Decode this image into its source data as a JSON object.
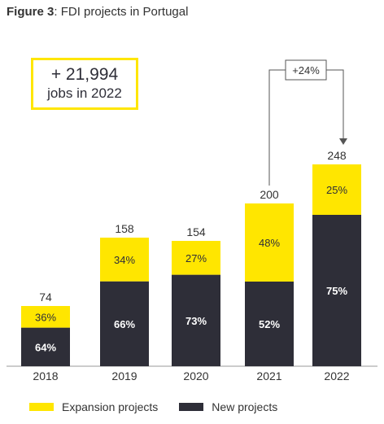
{
  "title_bold": "Figure 3",
  "title_rest": ": FDI projects in Portugal",
  "callout": {
    "value": "+ 21,994",
    "text": "jobs in 2022"
  },
  "growth_label": "+24%",
  "colors": {
    "expansion": "#ffe600",
    "new": "#2e2e38",
    "axis": "#999999"
  },
  "chart_data": {
    "type": "bar",
    "stacked": true,
    "categories": [
      "2018",
      "2019",
      "2020",
      "2021",
      "2022"
    ],
    "totals": [
      74,
      158,
      154,
      200,
      248
    ],
    "series": [
      {
        "name": "New projects",
        "percent_labels": [
          "64%",
          "66%",
          "73%",
          "52%",
          "75%"
        ],
        "values": [
          47.4,
          104.3,
          112.4,
          104,
          186
        ]
      },
      {
        "name": "Expansion projects",
        "percent_labels": [
          "36%",
          "34%",
          "27%",
          "48%",
          "25%"
        ],
        "values": [
          26.6,
          53.7,
          41.6,
          96,
          62
        ]
      }
    ],
    "ylim": [
      0,
      300
    ],
    "legend_position": "bottom",
    "grid": false
  }
}
